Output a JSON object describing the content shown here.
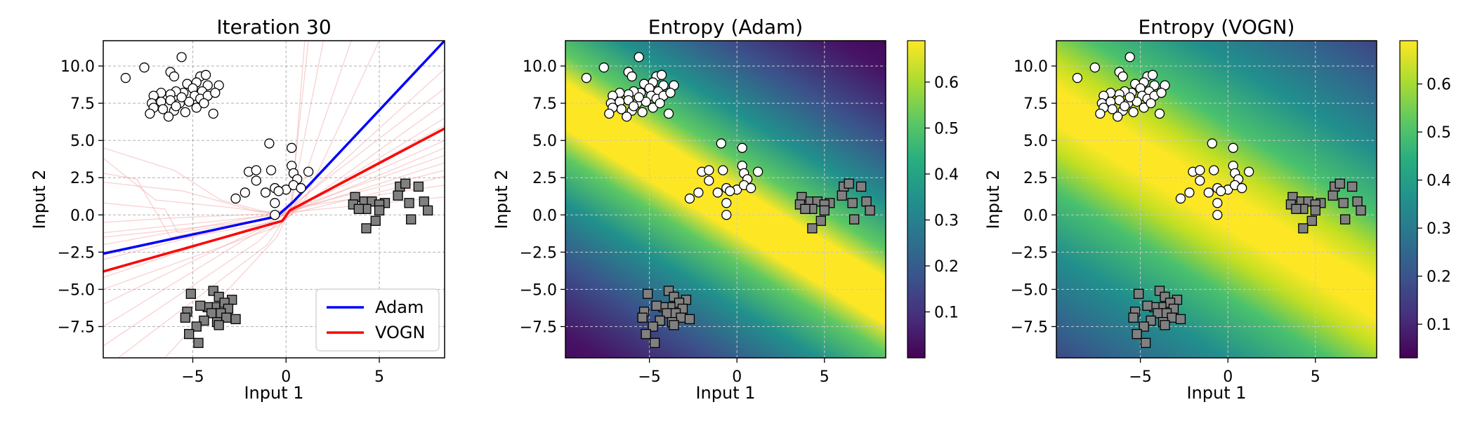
{
  "chart_data": [
    {
      "type": "line",
      "title": "Iteration 30",
      "xlabel": "Input 1",
      "ylabel": "Input 2",
      "xlim": [
        -9.8,
        8.5
      ],
      "ylim": [
        -9.6,
        11.7
      ],
      "xticks": [
        -5,
        0,
        5
      ],
      "yticks": [
        -7.5,
        -5.0,
        -2.5,
        0.0,
        2.5,
        5.0,
        7.5,
        10.0
      ],
      "grid": true,
      "legend": "bottom-right",
      "series": [
        {
          "name": "Adam",
          "color": "#0000ff",
          "x": [
            -9.8,
            -0.5,
            0.4,
            8.5
          ],
          "y": [
            -2.6,
            -0.1,
            0.9,
            11.7
          ]
        },
        {
          "name": "VOGN",
          "color": "#ff0000",
          "x": [
            -9.8,
            -0.2,
            0.2,
            8.5
          ],
          "y": [
            -3.8,
            -0.4,
            0.3,
            5.8
          ]
        }
      ],
      "samples_color": "#f2a0a0"
    },
    {
      "type": "heatmap",
      "title": "Entropy (Adam)",
      "xlabel": "Input 1",
      "ylabel": "Input 2",
      "xlim": [
        -9.8,
        8.5
      ],
      "ylim": [
        -9.6,
        11.7
      ],
      "xticks": [
        -5,
        0,
        5
      ],
      "yticks": [
        -7.5,
        -5.0,
        -2.5,
        0.0,
        2.5,
        5.0,
        7.5,
        10.0
      ],
      "grid": true,
      "colorbar": {
        "min": 0.0,
        "max": 0.69,
        "ticks": [
          0.1,
          0.2,
          0.3,
          0.4,
          0.5,
          0.6
        ]
      }
    },
    {
      "type": "heatmap",
      "title": "Entropy (VOGN)",
      "xlabel": "Input 1",
      "ylabel": "Input 2",
      "xlim": [
        -9.8,
        8.5
      ],
      "ylim": [
        -9.6,
        11.7
      ],
      "xticks": [
        -5,
        0,
        5
      ],
      "yticks": [
        -7.5,
        -5.0,
        -2.5,
        0.0,
        2.5,
        5.0,
        7.5,
        10.0
      ],
      "grid": true,
      "colorbar": {
        "min": 0.03,
        "max": 0.69,
        "ticks": [
          0.1,
          0.2,
          0.3,
          0.4,
          0.5,
          0.6
        ]
      }
    }
  ],
  "points_class0": [
    [
      -8.6,
      9.2
    ],
    [
      -7.6,
      9.9
    ],
    [
      -5.6,
      10.6
    ],
    [
      -6.2,
      9.6
    ],
    [
      -6.0,
      9.3
    ],
    [
      -4.6,
      9.3
    ],
    [
      -4.3,
      9.4
    ],
    [
      -4.8,
      8.9
    ],
    [
      -5.3,
      8.8
    ],
    [
      -5.0,
      8.5
    ],
    [
      -4.2,
      8.7
    ],
    [
      -3.6,
      8.7
    ],
    [
      -4.5,
      8.3
    ],
    [
      -4.9,
      8.0
    ],
    [
      -5.5,
      8.2
    ],
    [
      -5.9,
      8.3
    ],
    [
      -6.2,
      8.1
    ],
    [
      -6.7,
      8.2
    ],
    [
      -7.1,
      8.0
    ],
    [
      -7.2,
      7.5
    ],
    [
      -6.7,
      7.6
    ],
    [
      -6.2,
      7.7
    ],
    [
      -5.7,
      7.5
    ],
    [
      -5.2,
      7.6
    ],
    [
      -4.6,
      7.8
    ],
    [
      -4.2,
      8.0
    ],
    [
      -3.8,
      8.2
    ],
    [
      -6.6,
      7.1
    ],
    [
      -6.0,
      7.0
    ],
    [
      -5.4,
      6.9
    ],
    [
      -4.8,
      7.2
    ],
    [
      -3.9,
      6.8
    ],
    [
      -7.1,
      7.2
    ],
    [
      -7.3,
      6.8
    ],
    [
      -6.3,
      6.6
    ],
    [
      -5.9,
      7.3
    ],
    [
      -5.6,
      7.9
    ],
    [
      -4.4,
      7.5
    ],
    [
      -0.9,
      4.8
    ],
    [
      0.3,
      4.5
    ],
    [
      -2.0,
      2.9
    ],
    [
      -1.6,
      3.0
    ],
    [
      -0.8,
      3.0
    ],
    [
      0.3,
      3.3
    ],
    [
      0.4,
      2.8
    ],
    [
      1.2,
      2.9
    ],
    [
      0.6,
      2.4
    ],
    [
      -1.6,
      2.3
    ],
    [
      -0.6,
      1.8
    ],
    [
      0.0,
      1.7
    ],
    [
      0.4,
      2.0
    ],
    [
      0.8,
      1.8
    ],
    [
      -2.2,
      1.5
    ],
    [
      -1.1,
      1.5
    ],
    [
      -0.4,
      1.6
    ],
    [
      -2.7,
      1.1
    ],
    [
      -0.6,
      0.8
    ],
    [
      -0.6,
      0.0
    ]
  ],
  "points_class1": [
    [
      3.7,
      1.2
    ],
    [
      3.6,
      0.7
    ],
    [
      4.2,
      0.9
    ],
    [
      4.6,
      0.9
    ],
    [
      4.3,
      0.4
    ],
    [
      3.9,
      0.4
    ],
    [
      5.3,
      0.8
    ],
    [
      5.0,
      0.7
    ],
    [
      6.1,
      1.9
    ],
    [
      6.4,
      2.1
    ],
    [
      6.0,
      1.3
    ],
    [
      7.1,
      1.9
    ],
    [
      6.6,
      0.8
    ],
    [
      7.4,
      0.9
    ],
    [
      7.6,
      0.3
    ],
    [
      6.7,
      -0.3
    ],
    [
      5.0,
      0.3
    ],
    [
      4.8,
      -0.4
    ],
    [
      4.3,
      -0.9
    ],
    [
      -5.1,
      -5.3
    ],
    [
      -3.9,
      -5.1
    ],
    [
      -3.6,
      -5.5
    ],
    [
      -2.9,
      -5.7
    ],
    [
      -3.3,
      -5.9
    ],
    [
      -3.8,
      -6.2
    ],
    [
      -4.2,
      -6.2
    ],
    [
      -4.6,
      -6.1
    ],
    [
      -3.1,
      -6.3
    ],
    [
      -5.3,
      -6.5
    ],
    [
      -4.0,
      -6.6
    ],
    [
      -3.5,
      -6.6
    ],
    [
      -3.2,
      -6.9
    ],
    [
      -2.7,
      -7.0
    ],
    [
      -5.4,
      -6.9
    ],
    [
      -4.4,
      -7.1
    ],
    [
      -3.7,
      -7.2
    ],
    [
      -3.6,
      -7.4
    ],
    [
      -4.8,
      -7.5
    ],
    [
      -5.2,
      -8.0
    ],
    [
      -4.7,
      -8.6
    ]
  ]
}
